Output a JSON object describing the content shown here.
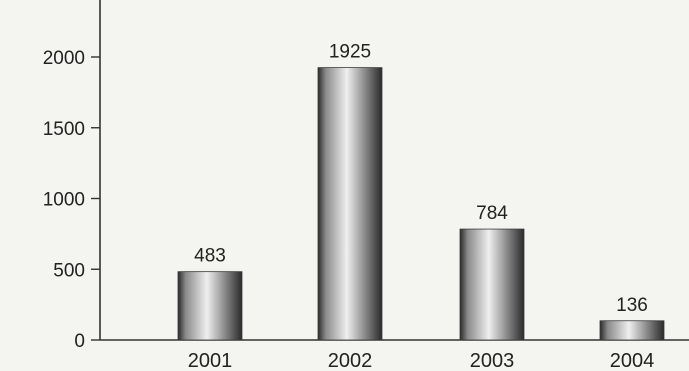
{
  "chart_data": {
    "type": "bar",
    "title": "",
    "xlabel": "",
    "ylabel": "",
    "categories": [
      "2001",
      "2002",
      "2003",
      "2004"
    ],
    "values": [
      483,
      1925,
      784,
      136
    ],
    "data_labels": [
      "483",
      "1925",
      "784",
      "136"
    ],
    "yticks": [
      0,
      500,
      1000,
      1500,
      2000
    ],
    "ytick_labels": [
      "0",
      "500",
      "1000",
      "1500",
      "2000"
    ],
    "ylim": [
      0,
      2000
    ],
    "grid": false,
    "legend": "none",
    "bar_color_light": "#efefef",
    "bar_color_dark": "#2a2a2a"
  }
}
